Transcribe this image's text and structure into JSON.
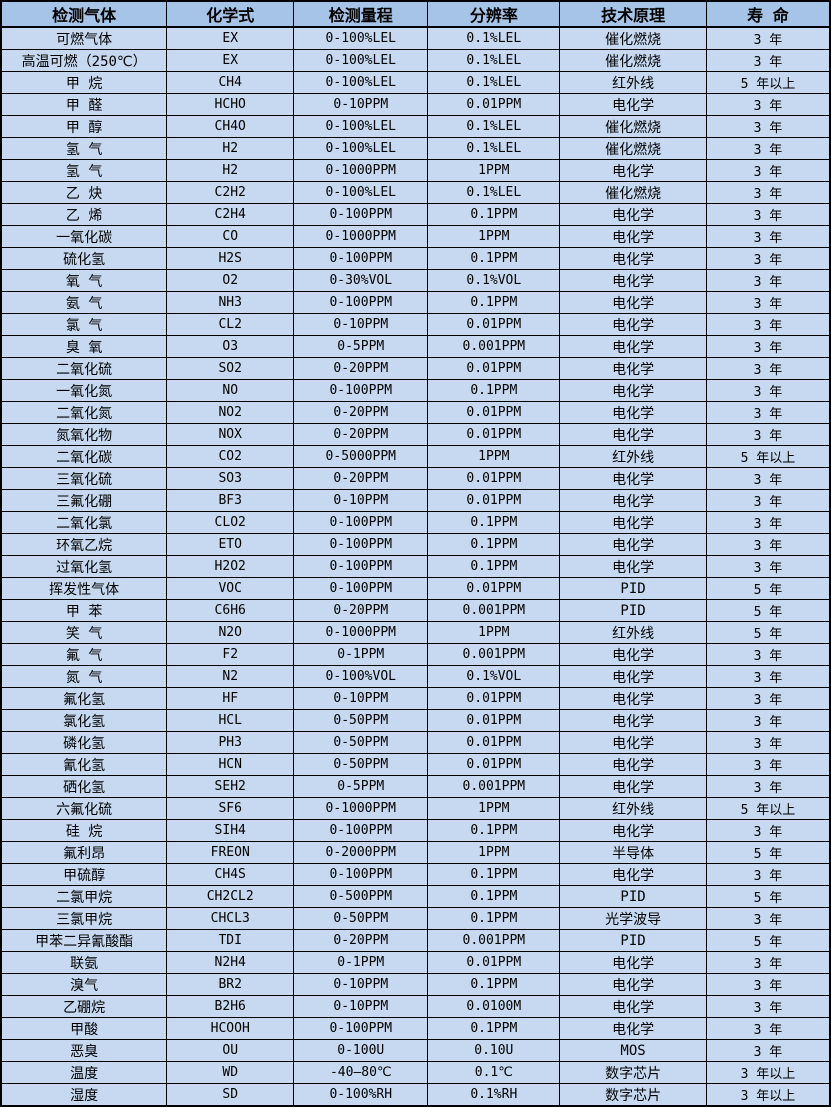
{
  "table": {
    "colors": {
      "header_bg": "#a6c4e7",
      "row_bg": "#c6d9f1",
      "border": "#000000",
      "text": "#000000"
    },
    "headers": [
      "检测气体",
      "化学式",
      "检测量程",
      "分辨率",
      "技术原理",
      "寿 命"
    ],
    "col_widths_pct": [
      20.0,
      15.3,
      16.2,
      15.9,
      17.7,
      14.9
    ],
    "rows": [
      [
        "可燃气体",
        "EX",
        "0-100%LEL",
        "0.1%LEL",
        "催化燃烧",
        "3 年"
      ],
      [
        "高温可燃（250℃）",
        "EX",
        "0-100%LEL",
        "0.1%LEL",
        "催化燃烧",
        "3 年"
      ],
      [
        "甲 烷",
        "CH4",
        "0-100%LEL",
        "0.1%LEL",
        "红外线",
        "5 年以上"
      ],
      [
        "甲 醛",
        "HCHO",
        "0-10PPM",
        "0.01PPM",
        "电化学",
        "3 年"
      ],
      [
        "甲 醇",
        "CH4O",
        "0-100%LEL",
        "0.1%LEL",
        "催化燃烧",
        "3 年"
      ],
      [
        "氢 气",
        "H2",
        "0-100%LEL",
        "0.1%LEL",
        "催化燃烧",
        "3 年"
      ],
      [
        "氢 气",
        "H2",
        "0-1000PPM",
        "1PPM",
        "电化学",
        "3 年"
      ],
      [
        "乙 炔",
        "C2H2",
        "0-100%LEL",
        "0.1%LEL",
        "催化燃烧",
        "3 年"
      ],
      [
        "乙 烯",
        "C2H4",
        "0-100PPM",
        "0.1PPM",
        "电化学",
        "3 年"
      ],
      [
        "一氧化碳",
        "CO",
        "0-1000PPM",
        "1PPM",
        "电化学",
        "3 年"
      ],
      [
        "硫化氢",
        "H2S",
        "0-100PPM",
        "0.1PPM",
        "电化学",
        "3 年"
      ],
      [
        "氧 气",
        "O2",
        "0-30%VOL",
        "0.1%VOL",
        "电化学",
        "3 年"
      ],
      [
        "氨 气",
        "NH3",
        "0-100PPM",
        "0.1PPM",
        "电化学",
        "3 年"
      ],
      [
        "氯 气",
        "CL2",
        "0-10PPM",
        "0.01PPM",
        "电化学",
        "3 年"
      ],
      [
        "臭 氧",
        "O3",
        "0-5PPM",
        "0.001PPM",
        "电化学",
        "3 年"
      ],
      [
        "二氧化硫",
        "SO2",
        "0-20PPM",
        "0.01PPM",
        "电化学",
        "3 年"
      ],
      [
        "一氧化氮",
        "NO",
        "0-100PPM",
        "0.1PPM",
        "电化学",
        "3 年"
      ],
      [
        "二氧化氮",
        "NO2",
        "0-20PPM",
        "0.01PPM",
        "电化学",
        "3 年"
      ],
      [
        "氮氧化物",
        "NOX",
        "0-20PPM",
        "0.01PPM",
        "电化学",
        "3 年"
      ],
      [
        "二氧化碳",
        "CO2",
        "0-5000PPM",
        "1PPM",
        "红外线",
        "5 年以上"
      ],
      [
        "三氧化硫",
        "SO3",
        "0-20PPM",
        "0.01PPM",
        "电化学",
        "3 年"
      ],
      [
        "三氟化硼",
        "BF3",
        "0-10PPM",
        "0.01PPM",
        "电化学",
        "3 年"
      ],
      [
        "二氧化氯",
        "CLO2",
        "0-100PPM",
        "0.1PPM",
        "电化学",
        "3 年"
      ],
      [
        "环氧乙烷",
        "ETO",
        "0-100PPM",
        "0.1PPM",
        "电化学",
        "3 年"
      ],
      [
        "过氧化氢",
        "H2O2",
        "0-100PPM",
        "0.1PPM",
        "电化学",
        "3 年"
      ],
      [
        "挥发性气体",
        "VOC",
        "0-100PPM",
        "0.01PPM",
        "PID",
        "5 年"
      ],
      [
        "甲 苯",
        "C6H6",
        "0-20PPM",
        "0.001PPM",
        "PID",
        "5 年"
      ],
      [
        "笑 气",
        "N2O",
        "0-1000PPM",
        "1PPM",
        "红外线",
        "5 年"
      ],
      [
        "氟 气",
        "F2",
        "0-1PPM",
        "0.001PPM",
        "电化学",
        "3 年"
      ],
      [
        "氮 气",
        "N2",
        "0-100%VOL",
        "0.1%VOL",
        "电化学",
        "3 年"
      ],
      [
        "氟化氢",
        "HF",
        "0-10PPM",
        "0.01PPM",
        "电化学",
        "3 年"
      ],
      [
        "氯化氢",
        "HCL",
        "0-50PPM",
        "0.01PPM",
        "电化学",
        "3 年"
      ],
      [
        "磷化氢",
        "PH3",
        "0-50PPM",
        "0.01PPM",
        "电化学",
        "3 年"
      ],
      [
        "氰化氢",
        "HCN",
        "0-50PPM",
        "0.01PPM",
        "电化学",
        "3 年"
      ],
      [
        "硒化氢",
        "SEH2",
        "0-5PPM",
        "0.001PPM",
        "电化学",
        "3 年"
      ],
      [
        "六氟化硫",
        "SF6",
        "0-1000PPM",
        "1PPM",
        "红外线",
        "5 年以上"
      ],
      [
        "硅 烷",
        "SIH4",
        "0-100PPM",
        "0.1PPM",
        "电化学",
        "3 年"
      ],
      [
        "氟利昂",
        "FREON",
        "0-2000PPM",
        "1PPM",
        "半导体",
        "5 年"
      ],
      [
        "甲硫醇",
        "CH4S",
        "0-100PPM",
        "0.1PPM",
        "电化学",
        "3 年"
      ],
      [
        "二氯甲烷",
        "CH2CL2",
        "0-500PPM",
        "0.1PPM",
        "PID",
        "5 年"
      ],
      [
        "三氯甲烷",
        "CHCL3",
        "0-50PPM",
        "0.1PPM",
        "光学波导",
        "3 年"
      ],
      [
        "甲苯二异氰酸酯",
        "TDI",
        "0-20PPM",
        "0.001PPM",
        "PID",
        "5 年"
      ],
      [
        "联氨",
        "N2H4",
        "0-1PPM",
        "0.01PPM",
        "电化学",
        "3 年"
      ],
      [
        "溴气",
        "BR2",
        "0-10PPM",
        "0.1PPM",
        "电化学",
        "3 年"
      ],
      [
        "乙硼烷",
        "B2H6",
        "0-10PPM",
        "0.0100M",
        "电化学",
        "3 年"
      ],
      [
        "甲酸",
        "HCOOH",
        "0-100PPM",
        "0.1PPM",
        "电化学",
        "3 年"
      ],
      [
        "恶臭",
        "OU",
        "0-100U",
        "0.10U",
        "MOS",
        "3 年"
      ],
      [
        "温度",
        "WD",
        "-40—80℃",
        "0.1℃",
        "数字芯片",
        "3 年以上"
      ],
      [
        "湿度",
        "SD",
        "0-100%RH",
        "0.1%RH",
        "数字芯片",
        "3 年以上"
      ]
    ]
  }
}
